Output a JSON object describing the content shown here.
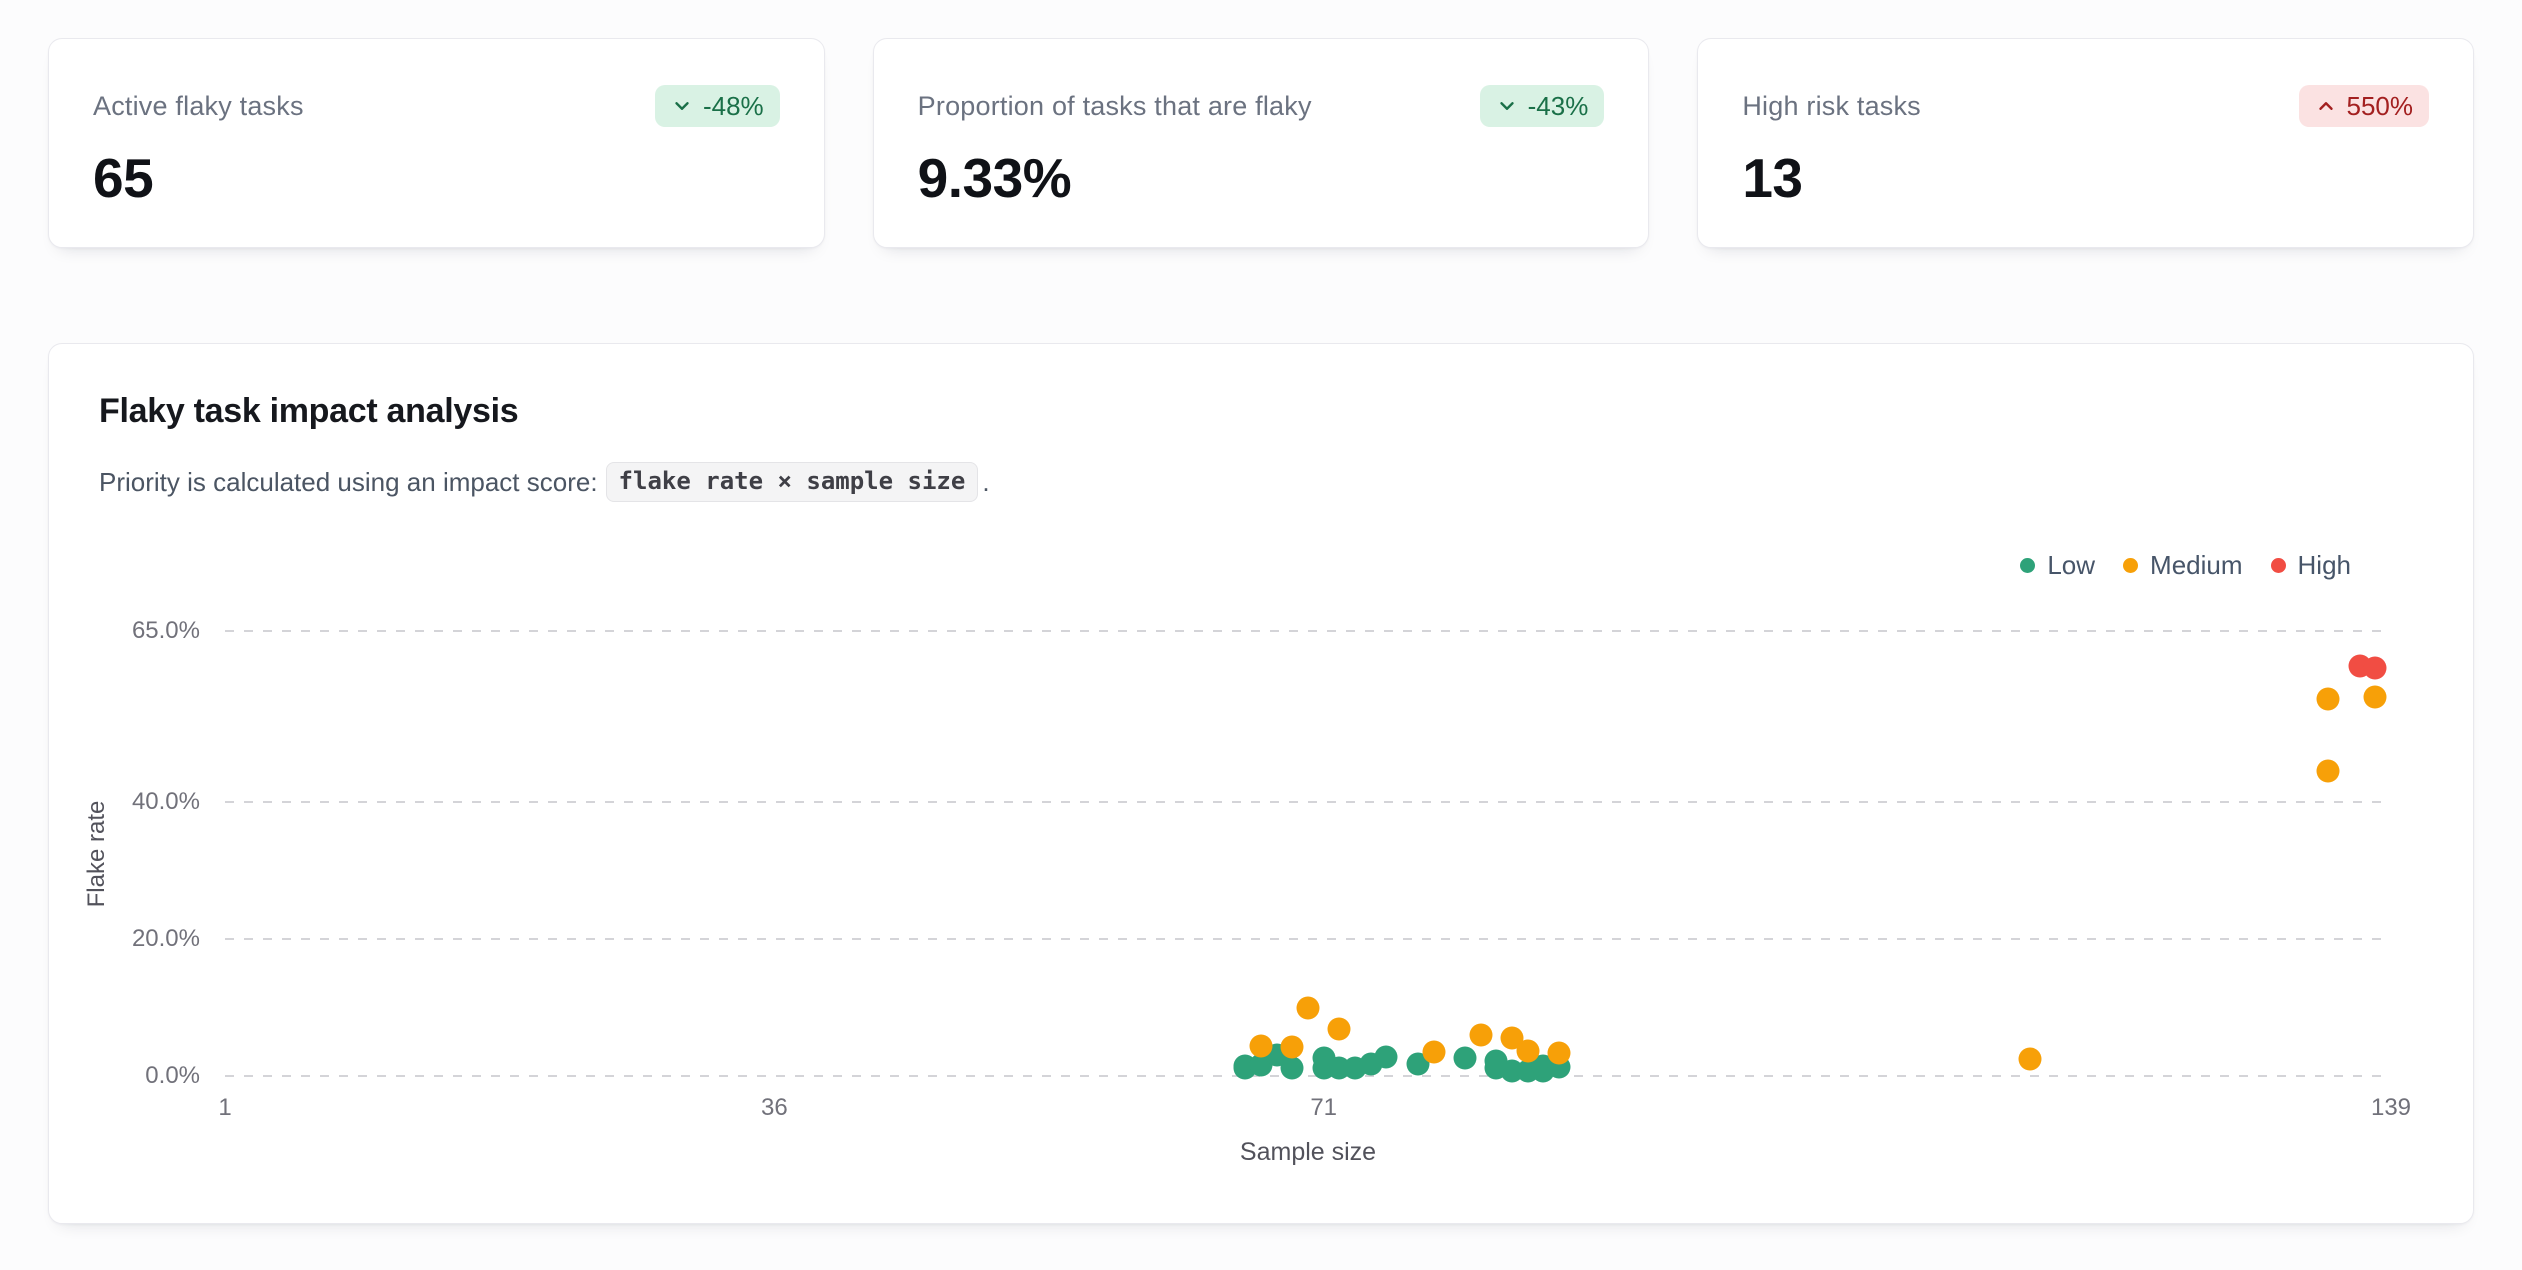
{
  "stats": [
    {
      "label": "Active flaky tasks",
      "value": "65",
      "delta": "-48%",
      "direction": "down",
      "sentiment": "positive"
    },
    {
      "label": "Proportion of tasks that are flaky",
      "value": "9.33%",
      "delta": "-43%",
      "direction": "down",
      "sentiment": "positive"
    },
    {
      "label": "High risk tasks",
      "value": "13",
      "delta": "550%",
      "direction": "up",
      "sentiment": "negative"
    }
  ],
  "colors": {
    "badge_positive_bg": "#d9f2e4",
    "badge_positive_text": "#1a7048",
    "badge_negative_bg": "#fbe2e2",
    "badge_negative_text": "#a32020",
    "low": "#2EA279",
    "medium": "#F7A008",
    "high": "#F14D43",
    "grid": "#d4d4d8"
  },
  "impact_card": {
    "title": "Flaky task impact analysis",
    "subtitle_prefix": "Priority is calculated using an impact score:",
    "subtitle_code": "flake rate × sample size",
    "subtitle_suffix": "."
  },
  "chart_data": {
    "type": "scatter",
    "title": "",
    "xlabel": "Sample size",
    "ylabel": "Flake rate",
    "xlim": [
      1,
      139
    ],
    "ylim": [
      0,
      65
    ],
    "x_ticks": [
      1,
      36,
      71,
      139
    ],
    "y_ticks": [
      {
        "value": 0,
        "label": "0.0%"
      },
      {
        "value": 20,
        "label": "20.0%"
      },
      {
        "value": 40,
        "label": "40.0%"
      },
      {
        "value": 65,
        "label": "65.0%"
      }
    ],
    "grid": "horizontal-dashed",
    "legend_position": "top-right",
    "series": [
      {
        "name": "Low",
        "color": "#2EA279",
        "points": [
          [
            66,
            1.5
          ],
          [
            66,
            1.1
          ],
          [
            67,
            1.6
          ],
          [
            68,
            3.0
          ],
          [
            69,
            1.1
          ],
          [
            71,
            2.6
          ],
          [
            71,
            1.1
          ],
          [
            72,
            1.1
          ],
          [
            73,
            1.1
          ],
          [
            74,
            1.8
          ],
          [
            75,
            2.8
          ],
          [
            77,
            1.8
          ],
          [
            80,
            2.6
          ],
          [
            82,
            2.2
          ],
          [
            82,
            1.1
          ],
          [
            83,
            0.7
          ],
          [
            84,
            0.7
          ],
          [
            85,
            0.7
          ],
          [
            85,
            1.5
          ],
          [
            86,
            1.3
          ]
        ]
      },
      {
        "name": "Medium",
        "color": "#F7A008",
        "points": [
          [
            67,
            4.4
          ],
          [
            69,
            4.3
          ],
          [
            70,
            10.0
          ],
          [
            72,
            6.9
          ],
          [
            78,
            3.5
          ],
          [
            81,
            6.0
          ],
          [
            83,
            5.6
          ],
          [
            84,
            3.7
          ],
          [
            86,
            3.4
          ],
          [
            116,
            2.5
          ],
          [
            135,
            55.0
          ],
          [
            135,
            44.6
          ],
          [
            138,
            55.3
          ]
        ]
      },
      {
        "name": "High",
        "color": "#F14D43",
        "points": [
          [
            137,
            59.9
          ],
          [
            138,
            59.6
          ]
        ]
      }
    ]
  }
}
